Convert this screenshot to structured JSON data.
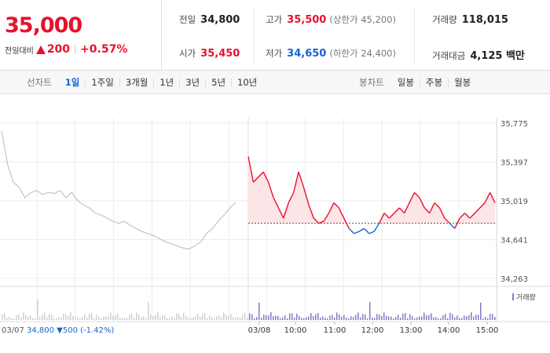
{
  "summary": {
    "price": "35,000",
    "change_label": "전일대비",
    "change_value": "200",
    "change_pct": "+0.57%",
    "prev_close": {
      "label": "전일",
      "value": "34,800"
    },
    "open": {
      "label": "시가",
      "value": "35,450"
    },
    "high": {
      "label": "고가",
      "value": "35,500",
      "sub": "(상한가 45,200)"
    },
    "low": {
      "label": "저가",
      "value": "34,650",
      "sub": "(하한가 24,400)"
    },
    "volume": {
      "label": "거래량",
      "value": "118,015"
    },
    "amount": {
      "label": "거래대금",
      "value": "4,125 백만"
    }
  },
  "line_tabs": {
    "header": "선차트",
    "items": [
      "1일",
      "1주일",
      "3개월",
      "1년",
      "3년",
      "5년",
      "10년"
    ],
    "active": "1일"
  },
  "candle_tabs": {
    "header": "봉차트",
    "items": [
      "일봉",
      "주봉",
      "월봉"
    ]
  },
  "chart": {
    "volume_legend": "거래량",
    "prev_day_label": "03/07",
    "prev_day_summary": "34,800 ▼500 (-1.42%)",
    "colors": {
      "up": "#e8112d",
      "down": "#1763d6",
      "prev": "#c8c8c8",
      "fill": "#fde4e6"
    }
  },
  "chart_data": {
    "type": "line",
    "y_ticks": [
      "35,775",
      "35,397",
      "35,019",
      "34,641",
      "34,263"
    ],
    "ylim": [
      34263,
      35775
    ],
    "reference_price": 34800,
    "x_ticks": [
      "03/08",
      "10:00",
      "11:00",
      "12:00",
      "13:00",
      "14:00",
      "15:00"
    ],
    "series": [
      {
        "values": [
          35700,
          35380,
          35200,
          35150,
          35050,
          35100,
          35120,
          35080,
          35100,
          35090,
          35120,
          35050,
          35100,
          35020,
          34980,
          34950,
          34900,
          34880,
          34850,
          34820,
          34800,
          34820,
          34780,
          34750,
          34720,
          34700,
          34680,
          34650,
          34620,
          34600,
          34580,
          34560,
          34550,
          34580,
          34620,
          34700,
          34750,
          34820,
          34880,
          34950,
          35000
        ]
      },
      {
        "values": [
          35450,
          35200,
          35250,
          35300,
          35200,
          35050,
          34950,
          34850,
          35000,
          35100,
          35300,
          35150,
          34980,
          34850,
          34800,
          34820,
          34900,
          35000,
          34950,
          34850,
          34750,
          34700,
          34720,
          34750,
          34700,
          34720,
          34800,
          34900,
          34850,
          34900,
          34950,
          34900,
          35000,
          35100,
          35050,
          34950,
          34900,
          35000,
          34950,
          34850,
          34800,
          34750,
          34850,
          34900,
          34850,
          34900,
          34950,
          35000,
          35100,
          35000
        ]
      }
    ]
  }
}
